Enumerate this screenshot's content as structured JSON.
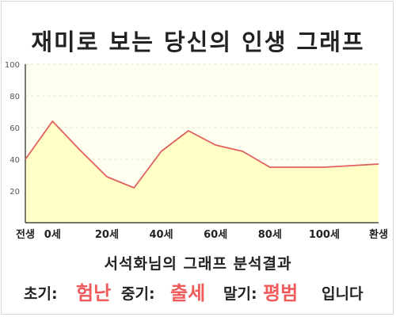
{
  "title": "재미로 보는 당신의 인생 그래프",
  "subtitle": "서석화님의 그래프 분석결과",
  "result": {
    "early_label": "초기:",
    "early_value": "험난",
    "mid_label": "중기:",
    "mid_value": "출세",
    "late_label": "말기:",
    "late_value": "평범",
    "suffix": "입니다"
  },
  "colors": {
    "line": "#e06060",
    "fill": "#ffffc6",
    "plot_bg": "#fffff0",
    "accent": "#ef5b5b"
  },
  "chart_data": {
    "type": "area",
    "x": [
      "전생",
      "0세",
      "",
      "20세",
      "",
      "40세",
      "",
      "60세",
      "",
      "80세",
      "",
      "100세",
      "",
      "환생"
    ],
    "x_tick_labels": [
      "전생",
      "0세",
      "20세",
      "40세",
      "60세",
      "80세",
      "100세",
      "환생"
    ],
    "values": [
      40,
      64,
      46,
      29,
      22,
      45,
      58,
      49,
      45,
      35,
      35,
      35,
      36,
      37
    ],
    "y_ticks": [
      20,
      40,
      60,
      80,
      100
    ],
    "ylim": [
      0,
      100
    ],
    "grid": true,
    "title": "",
    "xlabel": "",
    "ylabel": ""
  }
}
